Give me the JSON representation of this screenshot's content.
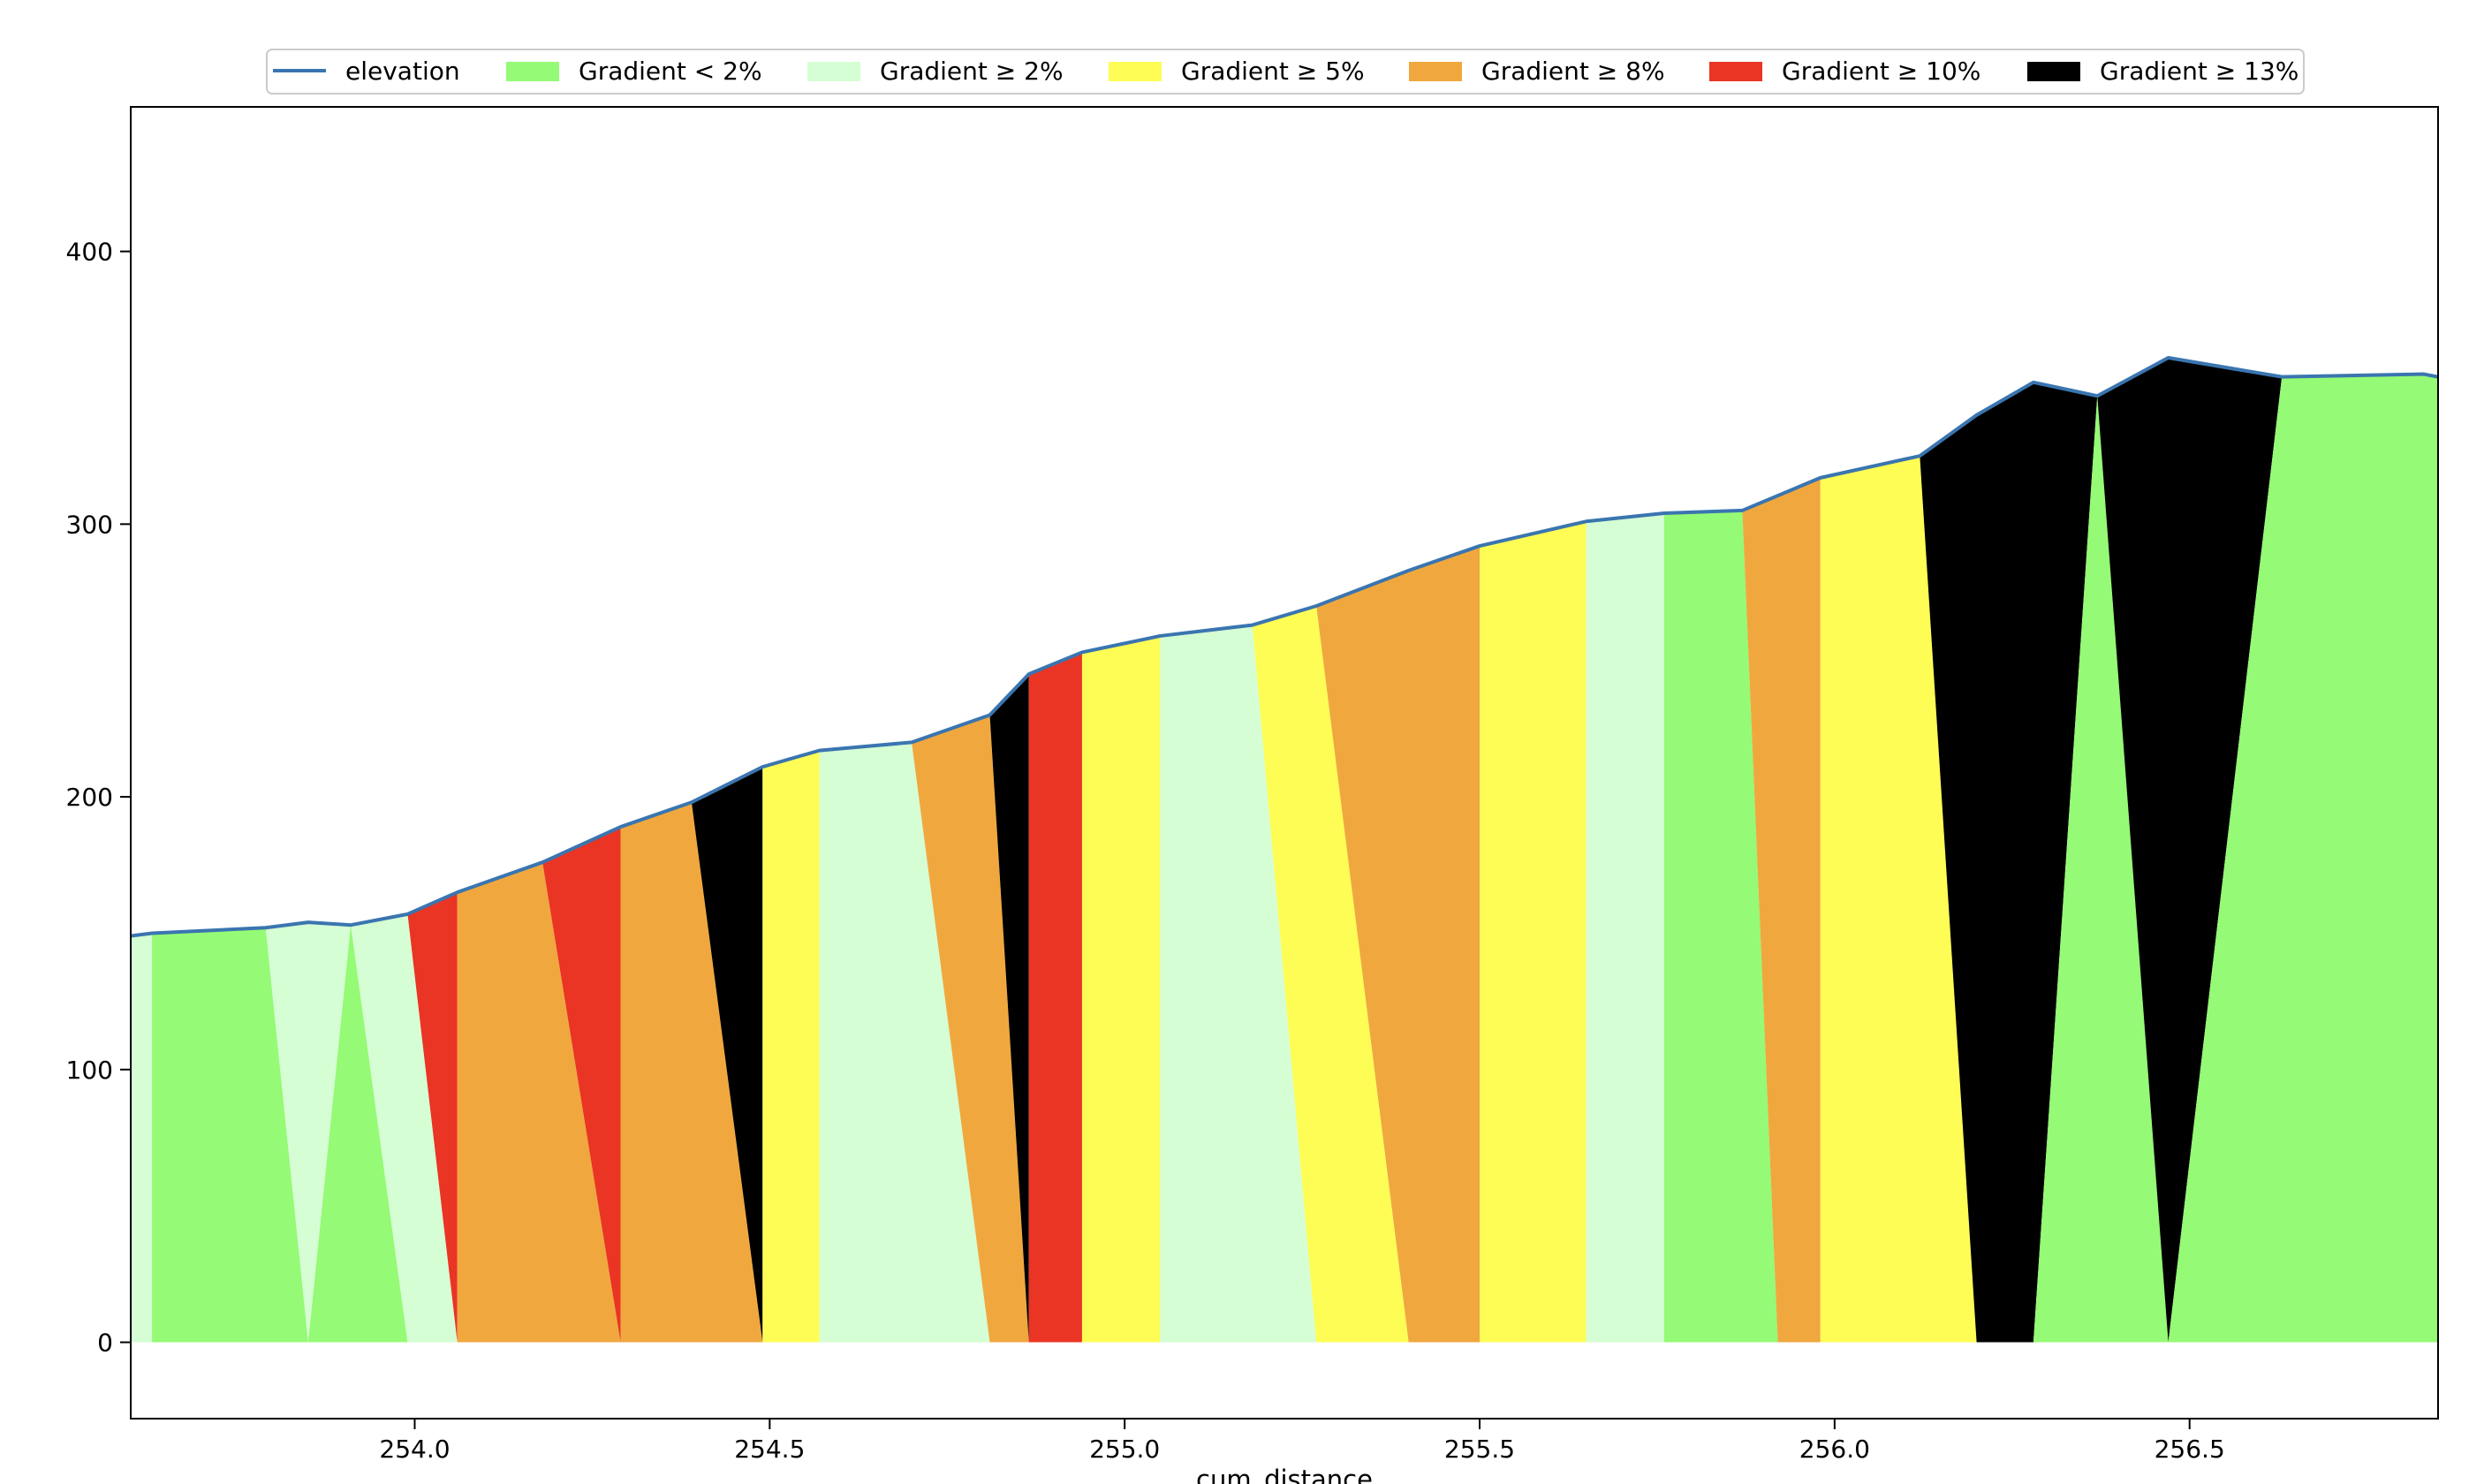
{
  "chart_data": {
    "type": "area",
    "title": "",
    "xlabel": "cum_distance",
    "ylabel": "",
    "xlim": [
      253.6,
      256.85
    ],
    "ylim": [
      -28,
      453
    ],
    "x_ticks": [
      254.0,
      254.5,
      255.0,
      255.5,
      256.0,
      256.5
    ],
    "x_tick_labels": [
      "254.0",
      "254.5",
      "255.0",
      "255.5",
      "256.0",
      "256.5"
    ],
    "y_ticks": [
      0,
      100,
      200,
      300,
      400
    ],
    "y_tick_labels": [
      "0",
      "100",
      "200",
      "300",
      "400"
    ],
    "grid": false,
    "legend_position": "top-center",
    "line_color": "#3a75b0",
    "series": [
      {
        "name": "elevation",
        "type": "line",
        "color": "#3a75b0"
      },
      {
        "name": "Gradient < 2%",
        "color": "#95fa75"
      },
      {
        "name": "Gradient ≥ 2%",
        "color": "#d6fed4"
      },
      {
        "name": "Gradient ≥ 5%",
        "color": "#fefd55"
      },
      {
        "name": "Gradient ≥ 8%",
        "color": "#f0a83e"
      },
      {
        "name": "Gradient ≥ 10%",
        "color": "#ea3424"
      },
      {
        "name": "Gradient ≥ 13%",
        "color": "#000000"
      }
    ],
    "elevation": {
      "x": [
        253.6,
        253.63,
        253.79,
        253.85,
        253.91,
        253.99,
        254.06,
        254.18,
        254.29,
        254.39,
        254.49,
        254.57,
        254.7,
        254.81,
        254.865,
        254.94,
        255.05,
        255.18,
        255.27,
        255.4,
        255.5,
        255.65,
        255.76,
        255.87,
        255.98,
        256.12,
        256.2,
        256.28,
        256.37,
        256.47,
        256.63,
        256.83,
        256.85
      ],
      "y": [
        149,
        150,
        152,
        154,
        153,
        157,
        165,
        176,
        189,
        198,
        211,
        217,
        220,
        230,
        245,
        253,
        259,
        263,
        270,
        283,
        292,
        301,
        304,
        305,
        317,
        325,
        340,
        352,
        347,
        361,
        354,
        355,
        354
      ]
    },
    "gradient_bands": [
      {
        "category": "Gradient ≥ 2%",
        "top": [
          253.6,
          253.63
        ],
        "bottom": [
          253.6,
          253.63
        ]
      },
      {
        "category": "Gradient < 2%",
        "top": [
          253.63,
          253.79
        ],
        "bottom": [
          253.63,
          253.85
        ]
      },
      {
        "category": "Gradient ≥ 2%",
        "top": [
          253.79,
          253.91
        ],
        "bottom": [
          253.85,
          253.85
        ]
      },
      {
        "category": "Gradient < 2%",
        "top": [
          253.91,
          253.91
        ],
        "bottom": [
          253.85,
          253.99
        ]
      },
      {
        "category": "Gradient ≥ 2%",
        "top": [
          253.91,
          253.99
        ],
        "bottom": [
          253.99,
          254.06
        ]
      },
      {
        "category": "Gradient ≥ 10%",
        "top": [
          253.99,
          254.06
        ],
        "bottom": [
          254.06,
          254.06
        ]
      },
      {
        "category": "Gradient ≥ 8%",
        "top": [
          254.06,
          254.18
        ],
        "bottom": [
          254.06,
          254.29
        ]
      },
      {
        "category": "Gradient ≥ 10%",
        "top": [
          254.18,
          254.29
        ],
        "bottom": [
          254.29,
          254.29
        ]
      },
      {
        "category": "Gradient ≥ 8%",
        "top": [
          254.29,
          254.39
        ],
        "bottom": [
          254.29,
          254.49
        ]
      },
      {
        "category": "Gradient ≥ 13%",
        "top": [
          254.39,
          254.49
        ],
        "bottom": [
          254.49,
          254.49
        ]
      },
      {
        "category": "Gradient ≥ 5%",
        "top": [
          254.49,
          254.57
        ],
        "bottom": [
          254.49,
          254.57
        ]
      },
      {
        "category": "Gradient ≥ 2%",
        "top": [
          254.57,
          254.7
        ],
        "bottom": [
          254.57,
          254.81
        ]
      },
      {
        "category": "Gradient ≥ 8%",
        "top": [
          254.7,
          254.81
        ],
        "bottom": [
          254.81,
          254.865
        ]
      },
      {
        "category": "Gradient ≥ 13%",
        "top": [
          254.81,
          254.865
        ],
        "bottom": [
          254.865,
          254.865
        ]
      },
      {
        "category": "Gradient ≥ 10%",
        "top": [
          254.865,
          254.94
        ],
        "bottom": [
          254.865,
          254.94
        ]
      },
      {
        "category": "Gradient ≥ 5%",
        "top": [
          254.94,
          255.05
        ],
        "bottom": [
          254.94,
          255.05
        ]
      },
      {
        "category": "Gradient ≥ 2%",
        "top": [
          255.05,
          255.18
        ],
        "bottom": [
          255.05,
          255.27
        ]
      },
      {
        "category": "Gradient ≥ 5%",
        "top": [
          255.18,
          255.27
        ],
        "bottom": [
          255.27,
          255.4
        ]
      },
      {
        "category": "Gradient ≥ 8%",
        "top": [
          255.27,
          255.5
        ],
        "bottom": [
          255.4,
          255.5
        ]
      },
      {
        "category": "Gradient ≥ 5%",
        "top": [
          255.5,
          255.65
        ],
        "bottom": [
          255.5,
          255.65
        ]
      },
      {
        "category": "Gradient ≥ 2%",
        "top": [
          255.65,
          255.76
        ],
        "bottom": [
          255.65,
          255.76
        ]
      },
      {
        "category": "Gradient < 2%",
        "top": [
          255.76,
          255.87
        ],
        "bottom": [
          255.76,
          255.92
        ]
      },
      {
        "category": "Gradient ≥ 8%",
        "top": [
          255.87,
          255.98
        ],
        "bottom": [
          255.92,
          255.98
        ]
      },
      {
        "category": "Gradient ≥ 5%",
        "top": [
          255.98,
          256.12
        ],
        "bottom": [
          255.98,
          256.2
        ]
      },
      {
        "category": "Gradient ≥ 13%",
        "top": [
          256.12,
          256.37
        ],
        "bottom": [
          256.2,
          256.28
        ]
      },
      {
        "category": "Gradient < 2%",
        "top": [
          256.37,
          256.37
        ],
        "bottom": [
          256.28,
          256.47
        ]
      },
      {
        "category": "Gradient ≥ 13%",
        "top": [
          256.37,
          256.63
        ],
        "bottom": [
          256.47,
          256.47
        ]
      },
      {
        "category": "Gradient < 2%",
        "top": [
          256.63,
          256.85
        ],
        "bottom": [
          256.47,
          256.85
        ]
      }
    ]
  }
}
